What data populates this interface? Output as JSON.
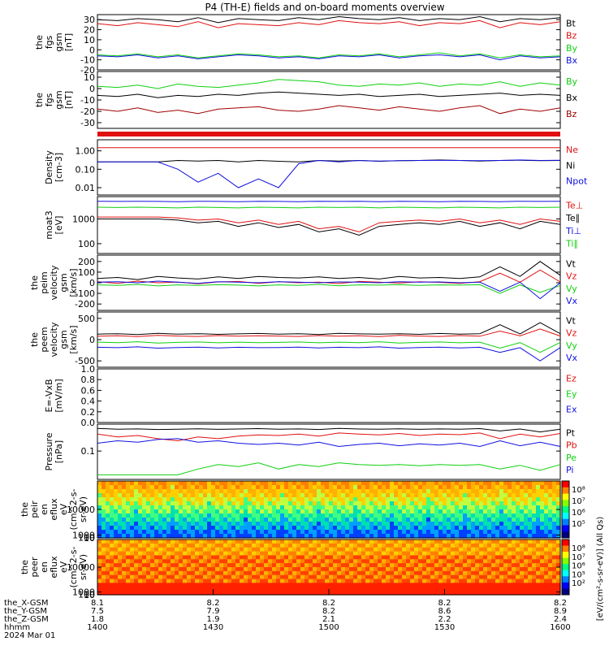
{
  "title": "P4 (TH-E) fields and on-board moments overview",
  "colors": {
    "black": "#000000",
    "red": "#e01010",
    "green": "#10d010",
    "blue": "#1010e0",
    "dkred": "#a00000"
  },
  "chart_data": [
    {
      "type": "line",
      "panel": "fgs_gsm_bt_bz",
      "ylabel": [
        "the",
        "fgs",
        "gsm",
        "[nT]"
      ],
      "yticks": [
        "30",
        "20",
        "10",
        "0",
        "-10",
        "-20"
      ],
      "ylim": [
        -20,
        35
      ],
      "series": [
        {
          "name": "Bt",
          "color": "black",
          "values": [
            30,
            29,
            31,
            30,
            28,
            32,
            27,
            31,
            30,
            29,
            32,
            30,
            33,
            31,
            30,
            32,
            29,
            31,
            30,
            33,
            28,
            31,
            30,
            32
          ]
        },
        {
          "name": "Bz",
          "color": "red",
          "values": [
            26,
            24,
            27,
            25,
            23,
            28,
            22,
            26,
            25,
            24,
            27,
            25,
            29,
            27,
            26,
            28,
            24,
            27,
            26,
            29,
            22,
            27,
            25,
            28
          ]
        },
        {
          "name": "By",
          "color": "green",
          "values": [
            -5,
            -6,
            -4,
            -7,
            -5,
            -8,
            -6,
            -4,
            -5,
            -7,
            -6,
            -8,
            -5,
            -6,
            -4,
            -7,
            -5,
            -3,
            -6,
            -4,
            -8,
            -5,
            -7,
            -6
          ]
        },
        {
          "name": "Bx",
          "color": "blue",
          "values": [
            -6,
            -7,
            -5,
            -8,
            -6,
            -9,
            -7,
            -5,
            -6,
            -8,
            -7,
            -9,
            -6,
            -7,
            -5,
            -8,
            -6,
            -5,
            -7,
            -5,
            -10,
            -6,
            -8,
            -7
          ]
        }
      ]
    },
    {
      "type": "line",
      "panel": "fgs_gsm_by_bx_bz",
      "ylabel": [
        "the",
        "fgs",
        "gsm",
        "[nT]"
      ],
      "yticks": [
        "10",
        "0",
        "-10",
        "-20",
        "-30"
      ],
      "ylim": [
        -35,
        15
      ],
      "series": [
        {
          "name": "By",
          "color": "green",
          "values": [
            2,
            1,
            3,
            0,
            4,
            2,
            1,
            3,
            5,
            8,
            7,
            6,
            3,
            2,
            4,
            3,
            5,
            2,
            4,
            3,
            6,
            2,
            5,
            3
          ]
        },
        {
          "name": "Bx",
          "color": "black",
          "values": [
            -6,
            -7,
            -5,
            -8,
            -6,
            -7,
            -5,
            -6,
            -4,
            -3,
            -4,
            -5,
            -6,
            -5,
            -7,
            -6,
            -5,
            -7,
            -6,
            -5,
            -4,
            -6,
            -5,
            -6
          ]
        },
        {
          "name": "Bz",
          "color": "dkred",
          "values": [
            -18,
            -20,
            -17,
            -21,
            -19,
            -22,
            -18,
            -17,
            -16,
            -19,
            -20,
            -18,
            -15,
            -17,
            -19,
            -16,
            -18,
            -20,
            -17,
            -15,
            -22,
            -18,
            -20,
            -17
          ]
        }
      ]
    },
    {
      "type": "line",
      "panel": "density",
      "ylabel": [
        "Density",
        "[cm-3]"
      ],
      "yscale": "log",
      "yticks": [
        "1.00",
        "0.10",
        "0.01"
      ],
      "ylim": [
        0.004,
        4
      ],
      "series": [
        {
          "name": "Ne",
          "color": "red",
          "values": [
            1.5,
            1.5,
            1.5,
            1.5,
            1.5,
            1.5,
            1.5,
            1.5,
            1.5,
            1.5,
            1.5,
            1.5,
            1.5,
            1.5,
            1.5,
            1.5,
            1.5,
            1.5,
            1.5,
            1.5,
            1.5,
            1.5,
            1.5,
            1.5
          ]
        },
        {
          "name": "Ni",
          "color": "black",
          "values": [
            0.25,
            0.25,
            0.25,
            0.25,
            0.3,
            0.28,
            0.3,
            0.25,
            0.3,
            0.27,
            0.25,
            0.3,
            0.28,
            0.3,
            0.27,
            0.29,
            0.3,
            0.32,
            0.3,
            0.28,
            0.3,
            0.31,
            0.29,
            0.3
          ]
        },
        {
          "name": "Npot",
          "color": "blue",
          "values": [
            0.25,
            0.25,
            0.25,
            0.25,
            0.1,
            0.02,
            0.06,
            0.01,
            0.03,
            0.01,
            0.2,
            0.3,
            0.25,
            0.3,
            0.28,
            0.29,
            0.3,
            0.31,
            0.3,
            0.29,
            0.3,
            0.32,
            0.3,
            0.31
          ]
        }
      ]
    },
    {
      "type": "line",
      "panel": "moat3",
      "ylabel": [
        "moat3",
        "[eV]"
      ],
      "yscale": "log",
      "yticks": [
        "1000",
        "100"
      ],
      "ylim": [
        40,
        8000
      ],
      "series": [
        {
          "name": "Te⊥",
          "color": "red",
          "values": [
            1200,
            1200,
            1200,
            1200,
            1100,
            900,
            1000,
            700,
            900,
            600,
            800,
            400,
            500,
            300,
            700,
            800,
            900,
            800,
            1000,
            700,
            900,
            600,
            1000,
            800
          ]
        },
        {
          "name": "Te∥",
          "color": "black",
          "values": [
            1000,
            1000,
            1000,
            1000,
            900,
            700,
            800,
            500,
            700,
            450,
            600,
            300,
            400,
            220,
            500,
            600,
            700,
            600,
            800,
            500,
            700,
            400,
            800,
            600
          ]
        },
        {
          "name": "Ti⊥",
          "color": "blue",
          "values": [
            5200,
            5100,
            5200,
            5100,
            5000,
            5200,
            5100,
            5000,
            5200,
            5100,
            5000,
            5200,
            5100,
            5200,
            5000,
            5200,
            5100,
            5000,
            5200,
            5100,
            5000,
            5200,
            5100,
            5200
          ]
        },
        {
          "name": "Ti∥",
          "color": "green",
          "values": [
            3000,
            2900,
            3000,
            2900,
            2800,
            3000,
            2900,
            2800,
            3000,
            2900,
            2800,
            3000,
            2900,
            3000,
            2800,
            3000,
            2900,
            2800,
            3000,
            2900,
            2800,
            3000,
            2900,
            3000
          ]
        }
      ]
    },
    {
      "type": "line",
      "panel": "peim_velocity",
      "ylabel": [
        "the",
        "peim",
        "velocity",
        "gsm",
        "[km/s]"
      ],
      "yticks": [
        "200",
        "100",
        "0",
        "-100",
        "-200"
      ],
      "ylim": [
        -260,
        260
      ],
      "series": [
        {
          "name": "Vt",
          "color": "black",
          "values": [
            40,
            50,
            30,
            60,
            45,
            35,
            55,
            40,
            60,
            50,
            45,
            55,
            40,
            50,
            35,
            60,
            45,
            50,
            40,
            55,
            150,
            60,
            200,
            70
          ]
        },
        {
          "name": "Vz",
          "color": "red",
          "values": [
            10,
            -5,
            15,
            0,
            5,
            -10,
            8,
            12,
            -5,
            10,
            0,
            6,
            -8,
            12,
            5,
            -3,
            9,
            4,
            -6,
            10,
            90,
            5,
            120,
            8
          ]
        },
        {
          "name": "Vy",
          "color": "green",
          "values": [
            -20,
            -25,
            -15,
            -30,
            -20,
            -25,
            -18,
            -22,
            -30,
            -20,
            -25,
            -15,
            -28,
            -20,
            -22,
            -18,
            -25,
            -20,
            -22,
            -18,
            -100,
            -20,
            -90,
            -25
          ]
        },
        {
          "name": "Vx",
          "color": "blue",
          "values": [
            5,
            10,
            0,
            15,
            5,
            -5,
            10,
            5,
            0,
            10,
            5,
            0,
            8,
            5,
            0,
            10,
            5,
            8,
            0,
            5,
            -80,
            5,
            -150,
            0
          ]
        }
      ]
    },
    {
      "type": "line",
      "panel": "peem_velocity",
      "ylabel": [
        "the",
        "peem",
        "velocity",
        "gsm",
        "[km/s]"
      ],
      "yticks": [
        "500",
        "0",
        "-500"
      ],
      "ylim": [
        -650,
        650
      ],
      "series": [
        {
          "name": "Vt",
          "color": "black",
          "values": [
            130,
            140,
            120,
            150,
            130,
            140,
            125,
            135,
            145,
            130,
            140,
            120,
            150,
            135,
            130,
            140,
            125,
            145,
            130,
            140,
            350,
            135,
            400,
            140
          ]
        },
        {
          "name": "Vz",
          "color": "red",
          "values": [
            80,
            90,
            70,
            100,
            85,
            75,
            95,
            80,
            90,
            85,
            75,
            95,
            80,
            90,
            70,
            100,
            85,
            75,
            95,
            80,
            200,
            90,
            250,
            85
          ]
        },
        {
          "name": "Vy",
          "color": "green",
          "values": [
            -60,
            -70,
            -50,
            -80,
            -65,
            -55,
            -75,
            -60,
            -70,
            -65,
            -55,
            -75,
            -60,
            -70,
            -50,
            -80,
            -65,
            -55,
            -75,
            -60,
            -200,
            -70,
            -300,
            -65
          ]
        },
        {
          "name": "Vx",
          "color": "blue",
          "values": [
            -180,
            -190,
            -170,
            -200,
            -185,
            -175,
            -195,
            -180,
            -190,
            -185,
            -175,
            -195,
            -180,
            -190,
            -170,
            -200,
            -185,
            -175,
            -195,
            -180,
            -300,
            -190,
            -500,
            -185
          ]
        }
      ]
    },
    {
      "type": "line",
      "panel": "efield",
      "ylabel": [
        "E=-VxB",
        "[mV/m]"
      ],
      "yticks": [
        "1.0",
        "0.8",
        "0.6",
        "0.4",
        "0.2",
        "0.0"
      ],
      "ylim": [
        0,
        1
      ],
      "series": [
        {
          "name": "Ez",
          "color": "red",
          "values": []
        },
        {
          "name": "Ey",
          "color": "green",
          "values": []
        },
        {
          "name": "Ex",
          "color": "blue",
          "values": []
        }
      ]
    },
    {
      "type": "line",
      "panel": "pressure",
      "ylabel": [
        "Pressure",
        "[nPa]"
      ],
      "yscale": "log",
      "yticks": [
        "0.1"
      ],
      "ylim": [
        0.008,
        1.1
      ],
      "series": [
        {
          "name": "Pt",
          "color": "black",
          "values": [
            0.75,
            0.7,
            0.72,
            0.68,
            0.7,
            0.73,
            0.69,
            0.71,
            0.74,
            0.7,
            0.72,
            0.68,
            0.75,
            0.71,
            0.7,
            0.73,
            0.69,
            0.72,
            0.7,
            0.74,
            0.6,
            0.71,
            0.55,
            0.7
          ]
        },
        {
          "name": "Pb",
          "color": "red",
          "values": [
            0.45,
            0.35,
            0.4,
            0.3,
            0.25,
            0.35,
            0.3,
            0.38,
            0.42,
            0.4,
            0.45,
            0.38,
            0.5,
            0.45,
            0.42,
            0.48,
            0.4,
            0.45,
            0.43,
            0.5,
            0.3,
            0.45,
            0.35,
            0.48
          ]
        },
        {
          "name": "Pe",
          "color": "green",
          "values": [
            0.012,
            0.012,
            0.012,
            0.012,
            0.012,
            0.02,
            0.03,
            0.025,
            0.035,
            0.02,
            0.03,
            0.025,
            0.035,
            0.03,
            0.028,
            0.03,
            0.027,
            0.03,
            0.028,
            0.03,
            0.02,
            0.028,
            0.018,
            0.03
          ]
        },
        {
          "name": "Pi",
          "color": "blue",
          "values": [
            0.2,
            0.25,
            0.22,
            0.28,
            0.3,
            0.22,
            0.25,
            0.2,
            0.18,
            0.2,
            0.17,
            0.22,
            0.15,
            0.18,
            0.2,
            0.16,
            0.19,
            0.17,
            0.2,
            0.15,
            0.25,
            0.16,
            0.22,
            0.15
          ]
        }
      ]
    },
    {
      "type": "heatmap",
      "panel": "peir_en_eflux",
      "ylabel": [
        "the",
        "peir",
        "en",
        "eflux",
        "eV",
        "(cm^2-s-",
        "sr-eV)"
      ],
      "yticks": [
        "10000",
        "1000",
        "100",
        "10"
      ],
      "ylim": [
        6,
        20000
      ]
    },
    {
      "type": "heatmap",
      "panel": "peer_en_eflux",
      "ylabel": [
        "the",
        "peer",
        "en",
        "eflux",
        "eV",
        "(cm^2-s-",
        "sr-eV)"
      ],
      "yticks": [
        "10000",
        "1000",
        "100",
        "10"
      ],
      "ylim": [
        6,
        20000
      ]
    }
  ],
  "colorbars": [
    {
      "ticks": [
        "10⁸",
        "10⁷",
        "10⁶",
        "10⁵"
      ]
    },
    {
      "ticks": [
        "10⁸",
        "10⁷",
        "10⁶",
        "10⁵",
        "10²"
      ]
    }
  ],
  "colorbar_label": "[eV/(cm²-s-sr-eV)] (All Qs)",
  "xaxis": {
    "rows": [
      {
        "label": "the_X-GSM",
        "values": [
          "8.1",
          "8.2",
          "8.2",
          "8.2",
          "8.2"
        ]
      },
      {
        "label": "the_Y-GSM",
        "values": [
          "7.5",
          "7.9",
          "8.2",
          "8.6",
          "8.9"
        ]
      },
      {
        "label": "the_Z-GSM",
        "values": [
          "1.8",
          "1.9",
          "2.1",
          "2.2",
          "2.4"
        ]
      },
      {
        "label": "hhmm",
        "values": [
          "1400",
          "1430",
          "1500",
          "1530",
          "1600"
        ]
      }
    ],
    "date": "2024 Mar 01"
  }
}
